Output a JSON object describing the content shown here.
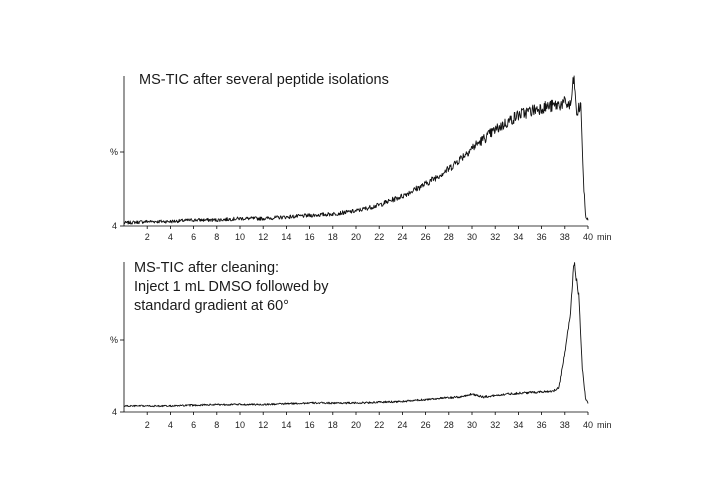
{
  "chart_data": [
    {
      "type": "line",
      "title_lines": [
        "MS-TIC after several peptide isolations"
      ],
      "ylabel": "%",
      "baseline_label": "4",
      "x_unit": "min",
      "xlim": [
        0,
        40
      ],
      "ylim": [
        0,
        100
      ],
      "xticks": [
        2,
        4,
        6,
        8,
        10,
        12,
        14,
        16,
        18,
        20,
        22,
        24,
        26,
        28,
        30,
        32,
        34,
        36,
        38,
        40
      ],
      "series": [
        {
          "name": "MS-TIC",
          "x": [
            0,
            2,
            4,
            6,
            8,
            10,
            12,
            14,
            16,
            18,
            20,
            22,
            24,
            26,
            28,
            30,
            32,
            34,
            36,
            37,
            38,
            38.5,
            38.8,
            39,
            39.2,
            39.4,
            39.6,
            39.8,
            40
          ],
          "y": [
            2,
            3,
            3,
            4,
            4,
            5,
            5,
            6,
            7,
            8,
            10,
            14,
            20,
            28,
            38,
            52,
            64,
            74,
            79,
            80,
            82,
            80,
            100,
            74,
            78,
            80,
            30,
            6,
            4
          ],
          "noise": 2.5
        }
      ]
    },
    {
      "type": "line",
      "title_lines": [
        "MS-TIC after cleaning:",
        "Inject 1 mL DMSO followed by",
        "standard gradient at 60°"
      ],
      "ylabel": "%",
      "baseline_label": "4",
      "x_unit": "min",
      "xlim": [
        0,
        40
      ],
      "ylim": [
        0,
        100
      ],
      "xticks": [
        2,
        4,
        6,
        8,
        10,
        12,
        14,
        16,
        18,
        20,
        22,
        24,
        26,
        28,
        30,
        32,
        34,
        36,
        38,
        40
      ],
      "series": [
        {
          "name": "MS-TIC",
          "x": [
            0,
            4,
            8,
            12,
            16,
            20,
            24,
            27,
            29,
            30,
            31,
            33,
            35,
            37,
            37.5,
            38,
            38.2,
            38.5,
            38.8,
            39,
            39.2,
            39.5,
            39.8,
            40
          ],
          "y": [
            4,
            4,
            5,
            5,
            6,
            6,
            7,
            9,
            10,
            12,
            10,
            12,
            13,
            14,
            16,
            40,
            50,
            68,
            100,
            88,
            78,
            30,
            8,
            6
          ],
          "noise": 1.2
        }
      ]
    }
  ]
}
